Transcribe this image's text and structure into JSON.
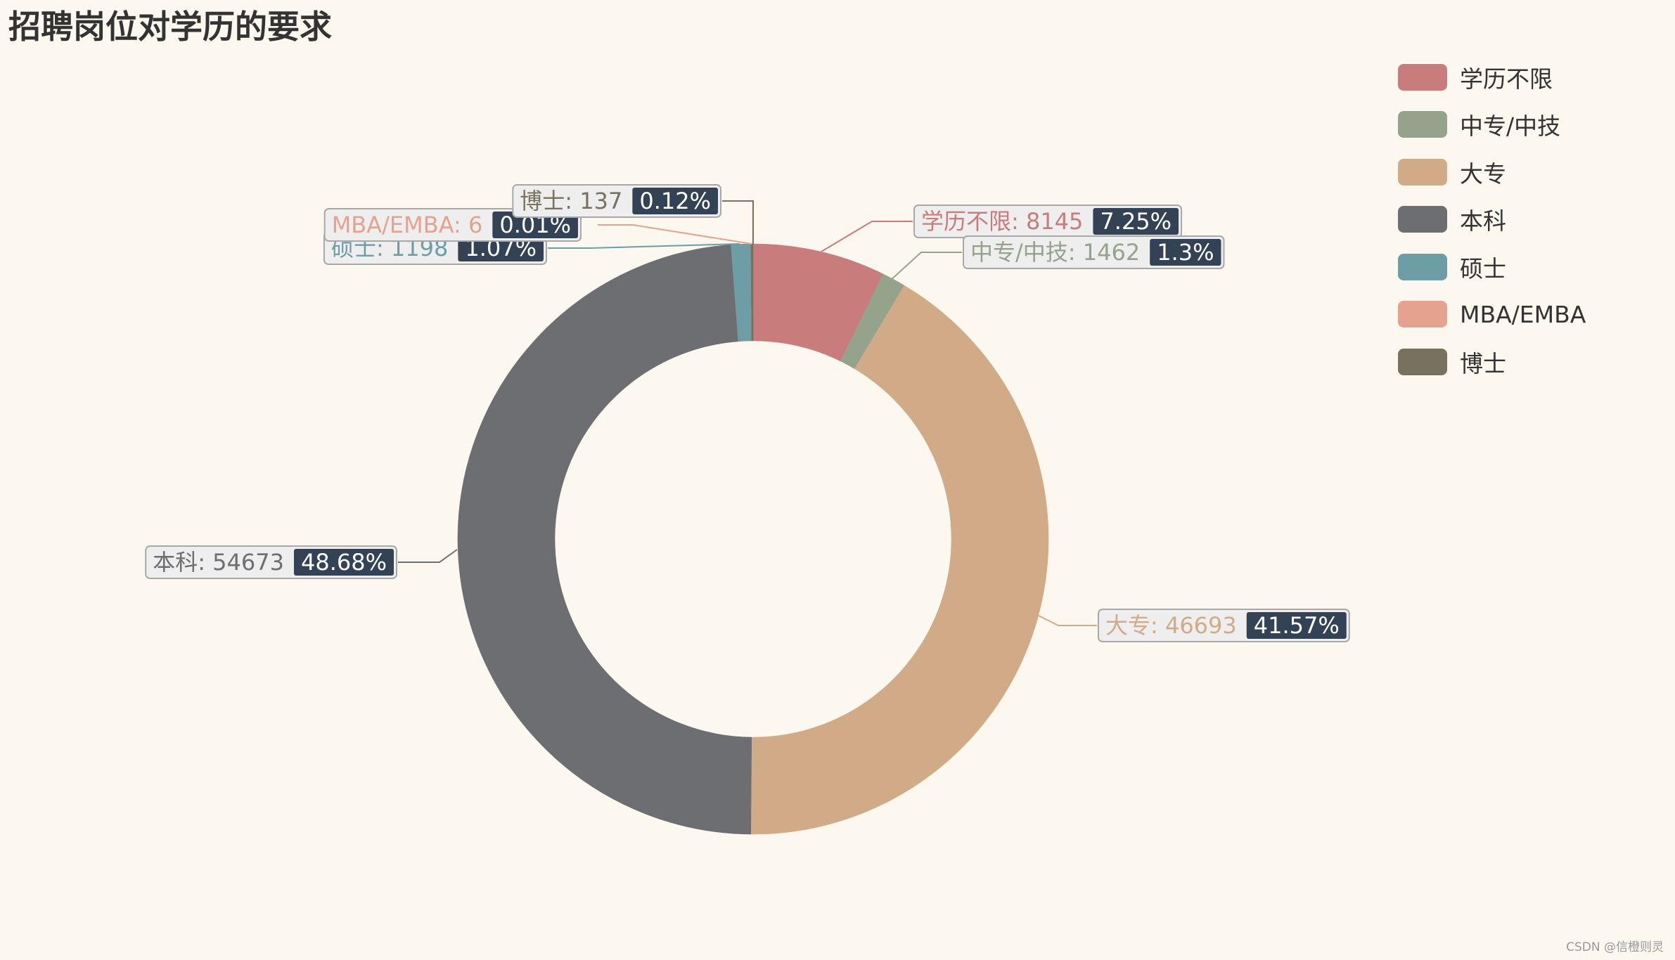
{
  "chart_data": {
    "type": "pie",
    "title": "招聘岗位对学历的要求",
    "donut": true,
    "legend_position": "top-right",
    "slices": [
      {
        "name": "学历不限",
        "value": 8145,
        "percent": "7.25%",
        "color": "#c87c7b"
      },
      {
        "name": "中专/中技",
        "value": 1462,
        "percent": "1.3%",
        "color": "#95a38c"
      },
      {
        "name": "大专",
        "value": 46693,
        "percent": "41.57%",
        "color": "#d1ab87"
      },
      {
        "name": "本科",
        "value": 54673,
        "percent": "48.68%",
        "color": "#6d6e71"
      },
      {
        "name": "硕士",
        "value": 1198,
        "percent": "1.07%",
        "color": "#6d9ea5"
      },
      {
        "name": "MBA/EMBA",
        "value": 6,
        "percent": "0.01%",
        "color": "#e5a28f"
      },
      {
        "name": "博士",
        "value": 137,
        "percent": "0.12%",
        "color": "#777160"
      }
    ]
  },
  "watermark": "CSDN @信橙则灵"
}
